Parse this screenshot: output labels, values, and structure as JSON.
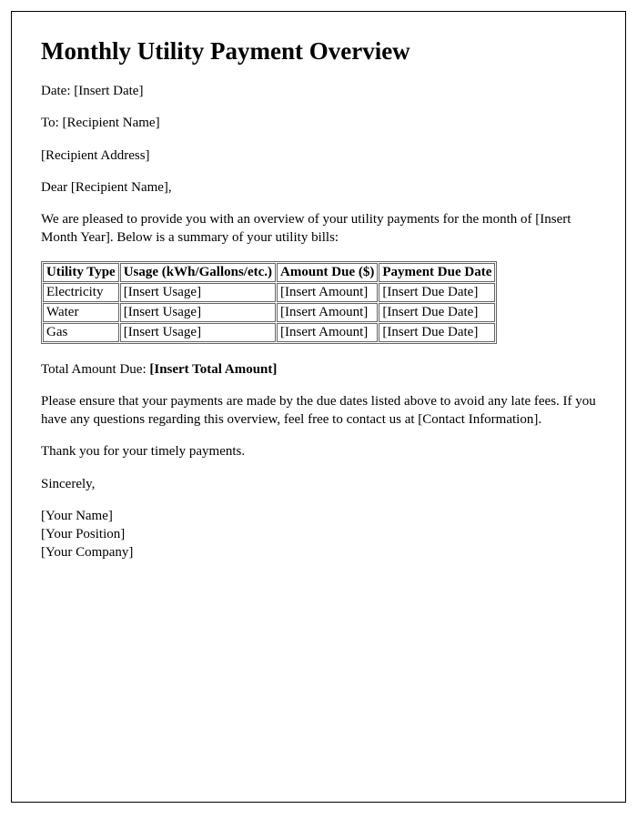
{
  "title": "Monthly Utility Payment Overview",
  "date_line": "Date: [Insert Date]",
  "to_line": "To: [Recipient Name]",
  "address_line": "[Recipient Address]",
  "greeting": "Dear [Recipient Name],",
  "intro": "We are pleased to provide you with an overview of your utility payments for the month of [Insert Month Year]. Below is a summary of your utility bills:",
  "table": {
    "headers": [
      "Utility Type",
      "Usage (kWh/Gallons/etc.)",
      "Amount Due ($)",
      "Payment Due Date"
    ],
    "rows": [
      [
        "Electricity",
        "[Insert Usage]",
        "[Insert Amount]",
        "[Insert Due Date]"
      ],
      [
        "Water",
        "[Insert Usage]",
        "[Insert Amount]",
        "[Insert Due Date]"
      ],
      [
        "Gas",
        "[Insert Usage]",
        "[Insert Amount]",
        "[Insert Due Date]"
      ]
    ]
  },
  "total_label": "Total Amount Due: ",
  "total_value": "[Insert Total Amount]",
  "notice": "Please ensure that your payments are made by the due dates listed above to avoid any late fees. If you have any questions regarding this overview, feel free to contact us at [Contact Information].",
  "thanks": "Thank you for your timely payments.",
  "closing": "Sincerely,",
  "sig_name": "[Your Name]",
  "sig_position": "[Your Position]",
  "sig_company": "[Your Company]",
  "colors": {
    "border": "#000000",
    "table_border": "#666666",
    "text": "#000000",
    "background": "#ffffff"
  },
  "typography": {
    "title_fontsize": 27,
    "body_fontsize": 15,
    "font_family": "Times New Roman"
  }
}
